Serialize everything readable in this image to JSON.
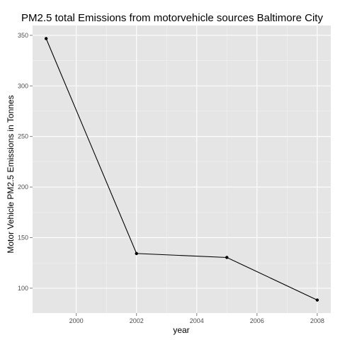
{
  "chart_data": {
    "type": "line",
    "title": "PM2.5 total Emissions from motorvehicle sources Baltimore City",
    "xlabel": "year",
    "ylabel": "Motor Vehicle PM2.5 Emissions in Tonnes",
    "x": [
      1999,
      2002,
      2005,
      2008
    ],
    "y": [
      346.8,
      134.3,
      130.4,
      88.3
    ],
    "xlim": [
      1998.55,
      2008.45
    ],
    "ylim": [
      75.4,
      359.7
    ],
    "xticks": [
      2000,
      2002,
      2004,
      2006,
      2008
    ],
    "yticks": [
      100,
      150,
      200,
      250,
      300,
      350
    ],
    "grid": true,
    "colors": {
      "panel": "#e5e5e5",
      "grid_major": "#ffffff",
      "grid_minor": "#f2f2f2",
      "line": "#000000",
      "point": "#000000",
      "tick_mark": "#7f7f7f",
      "tick_text": "#4d4d4d"
    }
  }
}
